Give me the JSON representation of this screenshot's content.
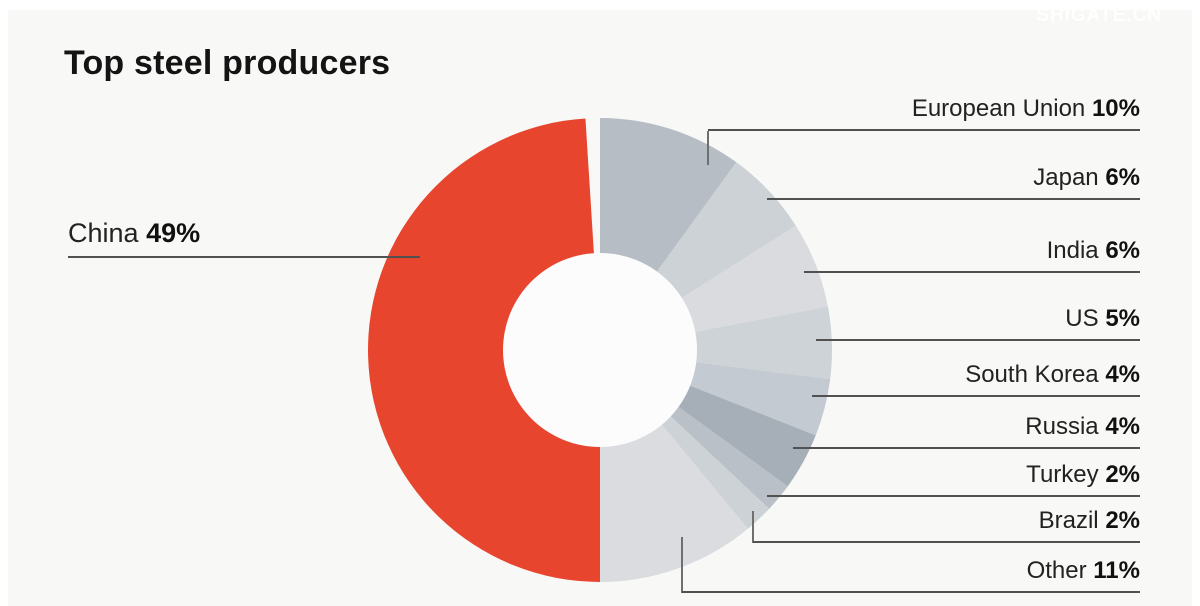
{
  "watermark": "SHIGATE.CN",
  "chart_data": {
    "type": "pie",
    "title": "Top steel producers",
    "donut": true,
    "start_angle_deg": 0,
    "direction": "clockwise",
    "value_suffix": "%",
    "legend_position": "callout-labels",
    "background": "#f8f8f6",
    "hole_color": "#fcfcfc",
    "accent_color": "#e8452f",
    "segments": [
      {
        "label": "European Union",
        "value": 10,
        "display": "10%",
        "color": "#b7bdc4"
      },
      {
        "label": "Japan",
        "value": 6,
        "display": "6%",
        "color": "#cdd2d7"
      },
      {
        "label": "India",
        "value": 6,
        "display": "6%",
        "color": "#d9dbdf"
      },
      {
        "label": "US",
        "value": 5,
        "display": "5%",
        "color": "#ced3d8"
      },
      {
        "label": "South Korea",
        "value": 4,
        "display": "4%",
        "color": "#c4cad1"
      },
      {
        "label": "Russia",
        "value": 4,
        "display": "4%",
        "color": "#a6aeb7"
      },
      {
        "label": "Turkey",
        "value": 2,
        "display": "2%",
        "color": "#b9c0c7"
      },
      {
        "label": "Brazil",
        "value": 2,
        "display": "2%",
        "color": "#cdd2d6"
      },
      {
        "label": "Other",
        "value": 11,
        "display": "11%",
        "color": "#dadce0"
      },
      {
        "label": "China",
        "value": 49,
        "display": "49%",
        "color": "#e8452f"
      }
    ]
  }
}
